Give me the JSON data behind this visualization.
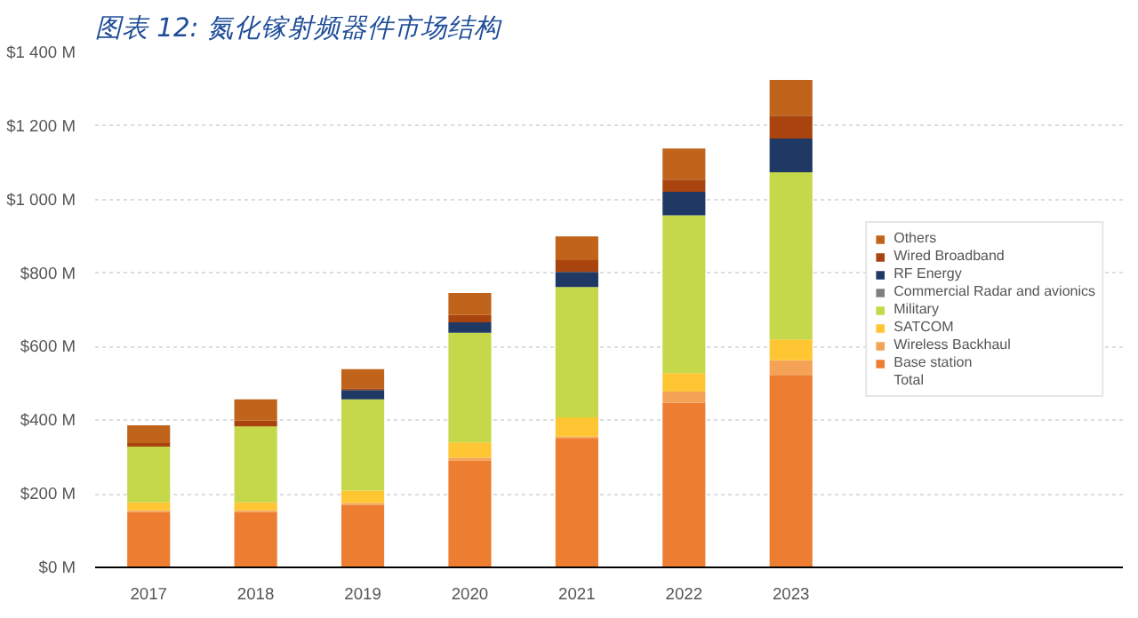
{
  "chart_data": {
    "type": "bar",
    "title": "图表 12: 氮化镓射频器件市场结构",
    "stacked": true,
    "categories": [
      "2017",
      "2018",
      "2019",
      "2020",
      "2021",
      "2022",
      "2023"
    ],
    "series": [
      {
        "name": "Base station",
        "color": "#ed7d31",
        "values": [
          150,
          150,
          170,
          290,
          350,
          448,
          523
        ]
      },
      {
        "name": "Wireless Backhaul",
        "color": "#f4a256",
        "values": [
          5,
          5,
          5,
          8,
          6,
          30,
          40
        ]
      },
      {
        "name": "SATCOM",
        "color": "#ffc633",
        "values": [
          22,
          22,
          34,
          42,
          52,
          50,
          57
        ]
      },
      {
        "name": "Military",
        "color": "#c4d84a",
        "values": [
          151,
          206,
          248,
          298,
          354,
          429,
          454
        ]
      },
      {
        "name": "Commercial Radar and avionics",
        "color": "#7f7f7f",
        "values": [
          0,
          0,
          0,
          0,
          0,
          0,
          0
        ]
      },
      {
        "name": "RF Energy",
        "color": "#1f3864",
        "values": [
          0,
          0,
          25,
          28,
          41,
          64,
          92
        ]
      },
      {
        "name": "Wired Broadband",
        "color": "#a9440f",
        "values": [
          10,
          16,
          5,
          20,
          32,
          33,
          62
        ]
      },
      {
        "name": "Others",
        "color": "#c0631b",
        "values": [
          48,
          58,
          52,
          60,
          65,
          85,
          97
        ]
      }
    ],
    "annotations": [
      "Total"
    ],
    "ylim": [
      0,
      1400
    ],
    "yticks": [
      {
        "value": 0,
        "label": "$0 M"
      },
      {
        "value": 200,
        "label": "$200 M"
      },
      {
        "value": 400,
        "label": "$400 M"
      },
      {
        "value": 600,
        "label": "$600 M"
      },
      {
        "value": 800,
        "label": "$800 M"
      },
      {
        "value": 1000,
        "label": "$1 000 M"
      },
      {
        "value": 1200,
        "label": "$1 200 M"
      },
      {
        "value": 1400,
        "label": "$1 400 M"
      }
    ],
    "grid": "y",
    "legend": "right"
  }
}
